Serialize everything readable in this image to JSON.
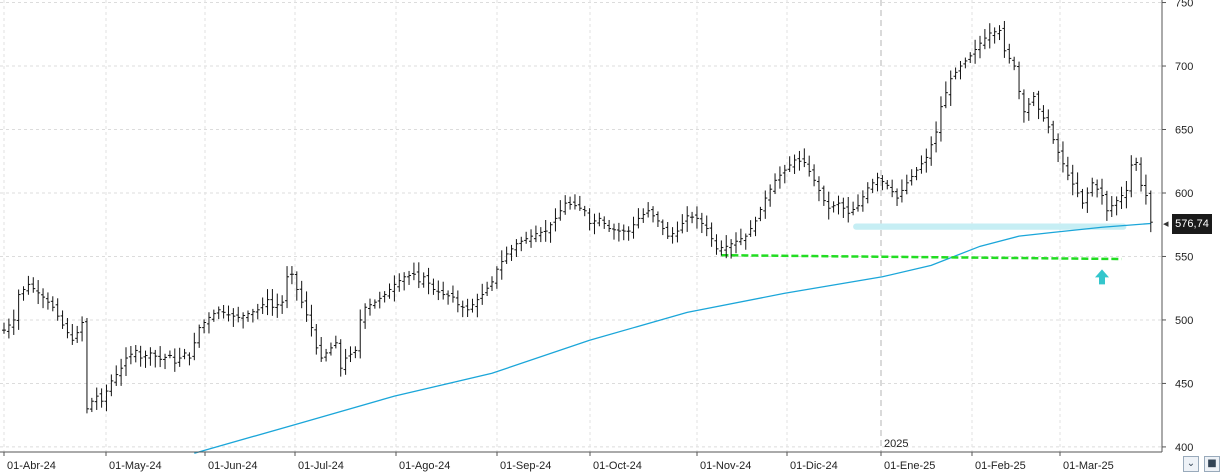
{
  "chart_data": {
    "type": "ohlc",
    "title": "",
    "xlabel": "",
    "ylabel": "",
    "ylim": [
      396,
      752
    ],
    "y_ticks": [
      "750",
      "700",
      "650",
      "600",
      "550",
      "500",
      "450",
      "400"
    ],
    "y_tick_values": [
      750,
      700,
      650,
      600,
      550,
      500,
      450,
      400
    ],
    "x_ticks": [
      "01-Abr-24",
      "01-May-24",
      "01-Jun-24",
      "01-Jul-24",
      "01-Ago-24",
      "01-Sep-24",
      "01-Oct-24",
      "01-Nov-24",
      "01-Dic-24",
      "01-Ene-25",
      "01-Feb-25",
      "01-Mar-25"
    ],
    "year_marker": "2025",
    "grid": true,
    "last_price_label": "576,74",
    "last_price": 576.74,
    "bar_color": "#111111",
    "ma_color": "#1ba6d9",
    "support_color": "#22dd22",
    "zone_color": "#c6eef4",
    "arrow_color": "#34c6cc",
    "price_path": [
      [
        0,
        492
      ],
      [
        2,
        500
      ],
      [
        3,
        520
      ],
      [
        5,
        528
      ],
      [
        8,
        518
      ],
      [
        10,
        510
      ],
      [
        12,
        496
      ],
      [
        14,
        484
      ],
      [
        15,
        490
      ],
      [
        16,
        498
      ],
      [
        17,
        430
      ],
      [
        18,
        436
      ],
      [
        19,
        440
      ],
      [
        20,
        436
      ],
      [
        22,
        452
      ],
      [
        24,
        462
      ],
      [
        25,
        470
      ],
      [
        27,
        476
      ],
      [
        28,
        470
      ],
      [
        30,
        474
      ],
      [
        32,
        469
      ],
      [
        34,
        472
      ],
      [
        35,
        466
      ],
      [
        37,
        474
      ],
      [
        38,
        470
      ],
      [
        40,
        494
      ],
      [
        42,
        502
      ],
      [
        44,
        508
      ],
      [
        45,
        506
      ],
      [
        46,
        504
      ],
      [
        48,
        502
      ],
      [
        50,
        505
      ],
      [
        52,
        508
      ],
      [
        54,
        516
      ],
      [
        55,
        510
      ],
      [
        57,
        514
      ],
      [
        58,
        534
      ],
      [
        59,
        536
      ],
      [
        60,
        524
      ],
      [
        62,
        504
      ],
      [
        63,
        494
      ],
      [
        64,
        478
      ],
      [
        65,
        470
      ],
      [
        66,
        474
      ],
      [
        67,
        478
      ],
      [
        68,
        482
      ],
      [
        69,
        462
      ],
      [
        70,
        470
      ],
      [
        72,
        476
      ],
      [
        73,
        500
      ],
      [
        74,
        510
      ],
      [
        76,
        514
      ],
      [
        78,
        520
      ],
      [
        80,
        528
      ],
      [
        82,
        534
      ],
      [
        84,
        536
      ],
      [
        85,
        530
      ],
      [
        86,
        534
      ],
      [
        88,
        524
      ],
      [
        90,
        520
      ],
      [
        92,
        518
      ],
      [
        93,
        512
      ],
      [
        95,
        508
      ],
      [
        96,
        512
      ],
      [
        98,
        520
      ],
      [
        100,
        530
      ],
      [
        101,
        540
      ],
      [
        103,
        552
      ],
      [
        105,
        560
      ],
      [
        107,
        564
      ],
      [
        109,
        568
      ],
      [
        111,
        570
      ],
      [
        113,
        580
      ],
      [
        115,
        592
      ],
      [
        117,
        590
      ],
      [
        119,
        586
      ],
      [
        120,
        576
      ],
      [
        122,
        580
      ],
      [
        124,
        572
      ],
      [
        126,
        570
      ],
      [
        128,
        570
      ],
      [
        130,
        580
      ],
      [
        132,
        586
      ],
      [
        134,
        578
      ],
      [
        135,
        572
      ],
      [
        136,
        566
      ],
      [
        138,
        570
      ],
      [
        140,
        582
      ],
      [
        142,
        580
      ],
      [
        144,
        572
      ],
      [
        146,
        556
      ],
      [
        148,
        558
      ],
      [
        150,
        562
      ],
      [
        152,
        566
      ],
      [
        154,
        578
      ],
      [
        156,
        596
      ],
      [
        158,
        610
      ],
      [
        160,
        618
      ],
      [
        162,
        626
      ],
      [
        164,
        624
      ],
      [
        166,
        610
      ],
      [
        168,
        594
      ],
      [
        169,
        588
      ],
      [
        171,
        592
      ],
      [
        173,
        584
      ],
      [
        175,
        590
      ],
      [
        177,
        604
      ],
      [
        179,
        612
      ],
      [
        181,
        606
      ],
      [
        183,
        596
      ],
      [
        185,
        608
      ],
      [
        187,
        618
      ],
      [
        189,
        628
      ],
      [
        191,
        648
      ],
      [
        192,
        668
      ],
      [
        194,
        690
      ],
      [
        196,
        700
      ],
      [
        198,
        708
      ],
      [
        200,
        718
      ],
      [
        202,
        726
      ],
      [
        204,
        728
      ],
      [
        205,
        712
      ],
      [
        207,
        700
      ],
      [
        208,
        680
      ],
      [
        209,
        664
      ],
      [
        211,
        676
      ],
      [
        212,
        666
      ],
      [
        214,
        652
      ],
      [
        216,
        632
      ],
      [
        218,
        614
      ],
      [
        220,
        600
      ],
      [
        221,
        592
      ],
      [
        223,
        608
      ],
      [
        225,
        598
      ],
      [
        226,
        586
      ],
      [
        228,
        594
      ],
      [
        230,
        602
      ],
      [
        231,
        622
      ],
      [
        232,
        624
      ],
      [
        233,
        606
      ],
      [
        234,
        598
      ],
      [
        235,
        577
      ]
    ],
    "ma200": [
      [
        39,
        395
      ],
      [
        60,
        418
      ],
      [
        80,
        440
      ],
      [
        100,
        458
      ],
      [
        120,
        484
      ],
      [
        140,
        506
      ],
      [
        160,
        521
      ],
      [
        180,
        534
      ],
      [
        190,
        543
      ],
      [
        200,
        558
      ],
      [
        208,
        566
      ],
      [
        215,
        569
      ],
      [
        225,
        573
      ],
      [
        235,
        576
      ]
    ],
    "support_line": {
      "from_bar": 147,
      "to_bar": 229,
      "from_value": 551,
      "to_value": 548
    },
    "support_zone": {
      "from_bar": 174,
      "to_bar": 230,
      "low": 571,
      "high": 576
    },
    "arrow_marker": {
      "bar": 225,
      "value": 532
    }
  }
}
